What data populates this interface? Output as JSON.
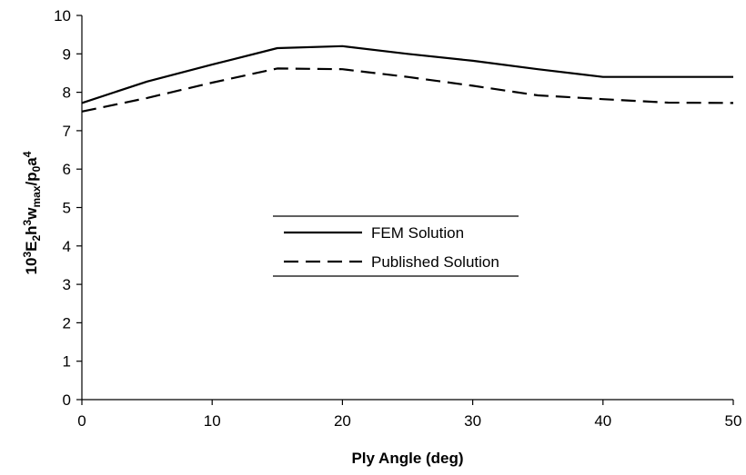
{
  "chart_data": {
    "type": "line",
    "title": "",
    "xlabel": "Ply Angle (deg)",
    "ylabel": {
      "parts": [
        {
          "text": "10",
          "shift": "base"
        },
        {
          "text": "3",
          "shift": "sup"
        },
        {
          "text": "E",
          "shift": "base"
        },
        {
          "text": "2",
          "shift": "sub"
        },
        {
          "text": "h",
          "shift": "base"
        },
        {
          "text": "3",
          "shift": "sup"
        },
        {
          "text": "w",
          "shift": "base"
        },
        {
          "text": "max",
          "shift": "sub"
        },
        {
          "text": "/p",
          "shift": "base"
        },
        {
          "text": "0",
          "shift": "sub"
        },
        {
          "text": "a",
          "shift": "base"
        },
        {
          "text": "4",
          "shift": "sup"
        }
      ]
    },
    "xlim": [
      0,
      50
    ],
    "ylim": [
      0,
      10
    ],
    "xticks": [
      0,
      10,
      20,
      30,
      40,
      50
    ],
    "yticks": [
      0,
      1,
      2,
      3,
      4,
      5,
      6,
      7,
      8,
      9,
      10
    ],
    "grid": false,
    "legend_position": "center",
    "series": [
      {
        "name": "FEM Solution",
        "style": "solid",
        "color": "#000000",
        "x": [
          0,
          5,
          10,
          15,
          20,
          25,
          30,
          35,
          40,
          45,
          50
        ],
        "y": [
          7.72,
          8.28,
          8.72,
          9.15,
          9.2,
          9.0,
          8.82,
          8.6,
          8.4,
          8.4,
          8.4
        ]
      },
      {
        "name": "Published Solution",
        "style": "dashed",
        "color": "#000000",
        "x": [
          0,
          5,
          10,
          15,
          20,
          25,
          30,
          35,
          40,
          45,
          50
        ],
        "y": [
          7.5,
          7.85,
          8.25,
          8.62,
          8.6,
          8.4,
          8.17,
          7.92,
          7.82,
          7.73,
          7.72
        ]
      }
    ]
  }
}
